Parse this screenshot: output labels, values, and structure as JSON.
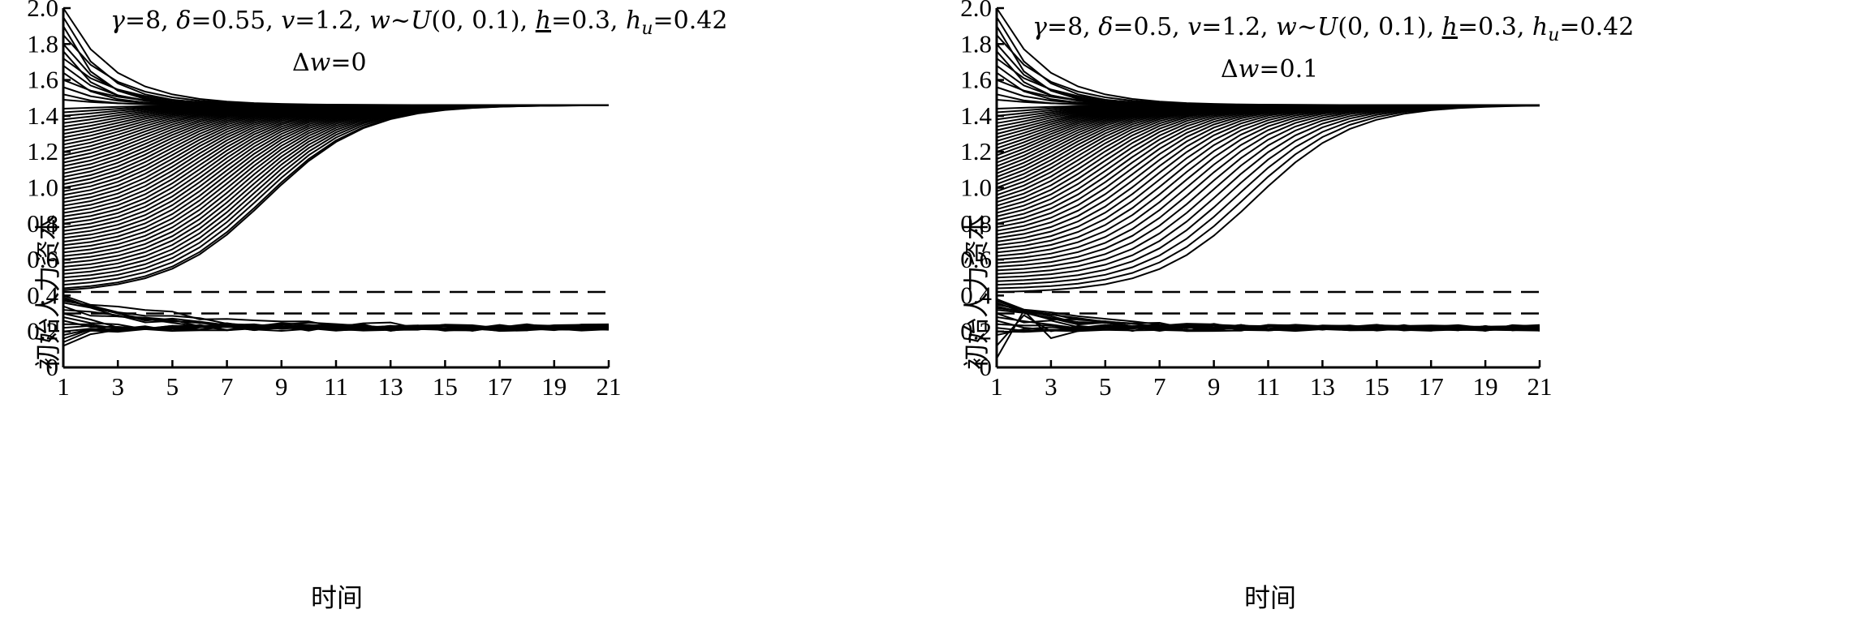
{
  "chart_data": [
    {
      "type": "line",
      "ylabel": "初始人力资本",
      "xlabel": "时间",
      "xlim": [
        1,
        21
      ],
      "ylim": [
        0,
        2.0
      ],
      "x_ticks": [
        "1",
        "3",
        "5",
        "7",
        "9",
        "11",
        "13",
        "15",
        "17",
        "19",
        "21"
      ],
      "y_ticks": [
        "0",
        "0.2",
        "0.4",
        "0.6",
        "0.8",
        "1.0",
        "1.2",
        "1.4",
        "1.6",
        "1.8",
        "2.0"
      ],
      "params": {
        "gamma": "=8,",
        "delta": "=0.55,",
        "v": "=1.2,",
        "w": "~",
        "U": "(0, 0.1),",
        "h": "=0.3,",
        "hu": "=0.42"
      },
      "dw_value": "=0",
      "steady_state_high": 1.46,
      "steady_state_low": 0.22,
      "threshold_h": 0.3,
      "threshold_hu": 0.42,
      "upper_initial_values": [
        2.0,
        1.95,
        1.9,
        1.85,
        1.8,
        1.76,
        1.72,
        1.68,
        1.64,
        1.6,
        1.56,
        1.52,
        1.49,
        1.44,
        1.42,
        1.4,
        1.38,
        1.36,
        1.34,
        1.32,
        1.3,
        1.28,
        1.26,
        1.24,
        1.22,
        1.2,
        1.18,
        1.16,
        1.14,
        1.12,
        1.1,
        1.08,
        1.06,
        1.04,
        1.02,
        1.0,
        0.98,
        0.96,
        0.94,
        0.92,
        0.9,
        0.88,
        0.86,
        0.84,
        0.82,
        0.8,
        0.78,
        0.76,
        0.74,
        0.72,
        0.7,
        0.68,
        0.66,
        0.64,
        0.62,
        0.6,
        0.58,
        0.56,
        0.54,
        0.52,
        0.5,
        0.48,
        0.46,
        0.44,
        0.43
      ],
      "lower_initial_values": [
        0.4,
        0.39,
        0.38,
        0.37,
        0.36,
        0.34,
        0.32,
        0.3,
        0.28,
        0.26,
        0.24,
        0.22,
        0.2,
        0.18,
        0.16,
        0.14,
        0.12
      ]
    },
    {
      "type": "line",
      "ylabel": "初始人力资本",
      "xlabel": "时间",
      "xlim": [
        1,
        21
      ],
      "ylim": [
        0,
        2.0
      ],
      "x_ticks": [
        "1",
        "3",
        "5",
        "7",
        "9",
        "11",
        "13",
        "15",
        "17",
        "19",
        "21"
      ],
      "y_ticks": [
        "0",
        "0.2",
        "0.4",
        "0.6",
        "0.8",
        "1.0",
        "1.2",
        "1.4",
        "1.6",
        "1.8",
        "2.0"
      ],
      "params": {
        "gamma": "=8,",
        "delta": "=0.5,",
        "v": "=1.2,",
        "w": "~",
        "U": "(0, 0.1),",
        "h": "=0.3,",
        "hu": "=0.42"
      },
      "dw_value": "=0.1",
      "steady_state_high": 1.46,
      "steady_state_low": 0.22,
      "threshold_h": 0.3,
      "threshold_hu": 0.42,
      "upper_initial_values": [
        2.0,
        1.95,
        1.9,
        1.85,
        1.8,
        1.76,
        1.72,
        1.68,
        1.64,
        1.6,
        1.56,
        1.52,
        1.49,
        1.44,
        1.42,
        1.4,
        1.38,
        1.36,
        1.34,
        1.32,
        1.3,
        1.28,
        1.26,
        1.24,
        1.22,
        1.2,
        1.18,
        1.16,
        1.14,
        1.12,
        1.1,
        1.08,
        1.06,
        1.04,
        1.02,
        1.0,
        0.98,
        0.96,
        0.94,
        0.92,
        0.9,
        0.88,
        0.86,
        0.84,
        0.82,
        0.8,
        0.78,
        0.76,
        0.74,
        0.72,
        0.7,
        0.68,
        0.66,
        0.64,
        0.62,
        0.6,
        0.58,
        0.56,
        0.54,
        0.52,
        0.5,
        0.48,
        0.46,
        0.44,
        0.42
      ],
      "lower_initial_values": [
        0.38,
        0.37,
        0.36,
        0.35,
        0.34,
        0.33,
        0.32,
        0.3,
        0.28,
        0.26,
        0.24,
        0.22,
        0.2,
        0.18,
        0.12,
        0.05
      ]
    }
  ]
}
